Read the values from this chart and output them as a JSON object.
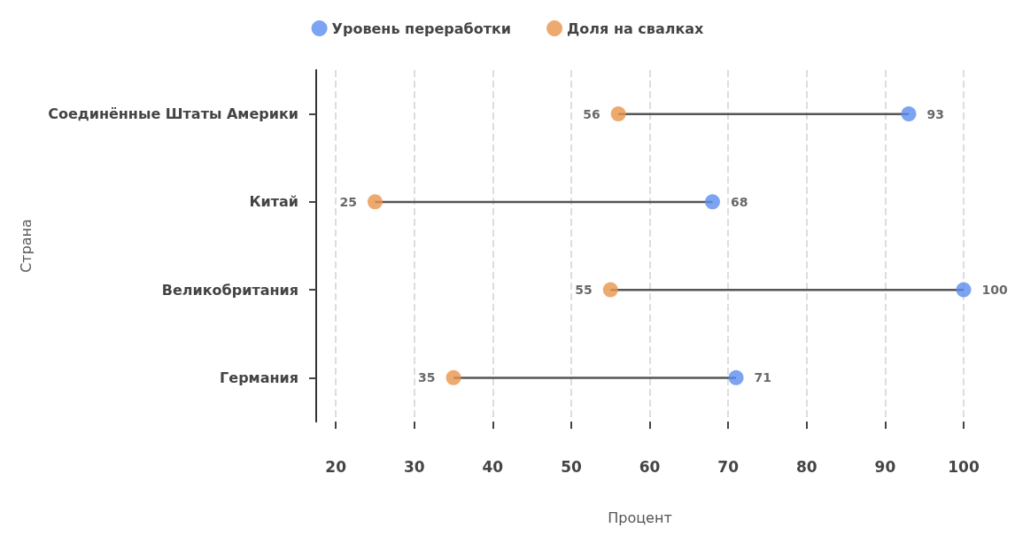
{
  "chart_data": {
    "type": "scatter",
    "orientation": "horizontal",
    "xlabel": "Процент",
    "ylabel": "Страна",
    "categories": [
      "Соединённые Штаты Америки",
      "Китай",
      "Великобритания",
      "Германия"
    ],
    "series": [
      {
        "name": "Уровень переработки",
        "color": "#5b8def",
        "values": [
          93,
          68,
          100,
          71
        ]
      },
      {
        "name": "Доля на свалках",
        "color": "#e8954a",
        "values": [
          56,
          25,
          55,
          35
        ]
      }
    ],
    "xlim": [
      17.5,
      100
    ],
    "xticks": [
      20,
      30,
      40,
      50,
      60,
      70,
      80,
      90,
      100
    ],
    "grid": "x",
    "legend": "top",
    "marker": "circle",
    "data_labels": true
  }
}
